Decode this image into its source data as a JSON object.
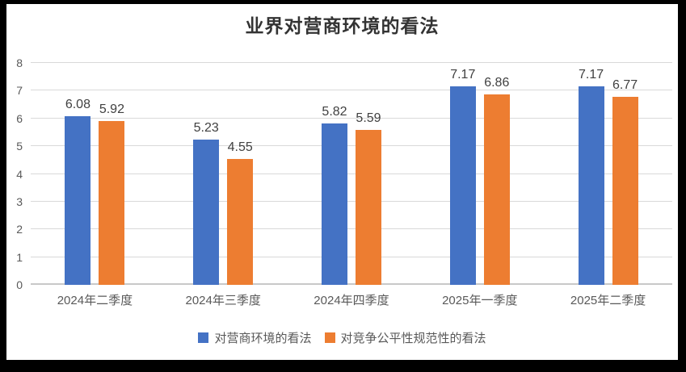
{
  "title": "业界对营商环境的看法",
  "chart_data": {
    "type": "bar",
    "title": "业界对营商环境的看法",
    "categories": [
      "2024年二季度",
      "2024年三季度",
      "2024年四季度",
      "2025年一季度",
      "2025年二季度"
    ],
    "series": [
      {
        "name": "对营商环境的看法",
        "color": "#4472C4",
        "values": [
          6.08,
          5.23,
          5.82,
          7.17,
          7.17
        ]
      },
      {
        "name": "对竞争公平性规范性的看法",
        "color": "#ED7D31",
        "values": [
          5.92,
          4.55,
          5.59,
          6.86,
          6.77
        ]
      }
    ],
    "xlabel": "",
    "ylabel": "",
    "ylim": [
      0,
      8
    ],
    "ytick_interval": 1,
    "grid": true,
    "legend_position": "bottom",
    "data_labels": true
  },
  "colors": {
    "frame": "#000000",
    "background": "#ffffff",
    "gridline": "#d9d9d9",
    "axis_text": "#595959",
    "label_text": "#404040",
    "title_text": "#333333"
  }
}
